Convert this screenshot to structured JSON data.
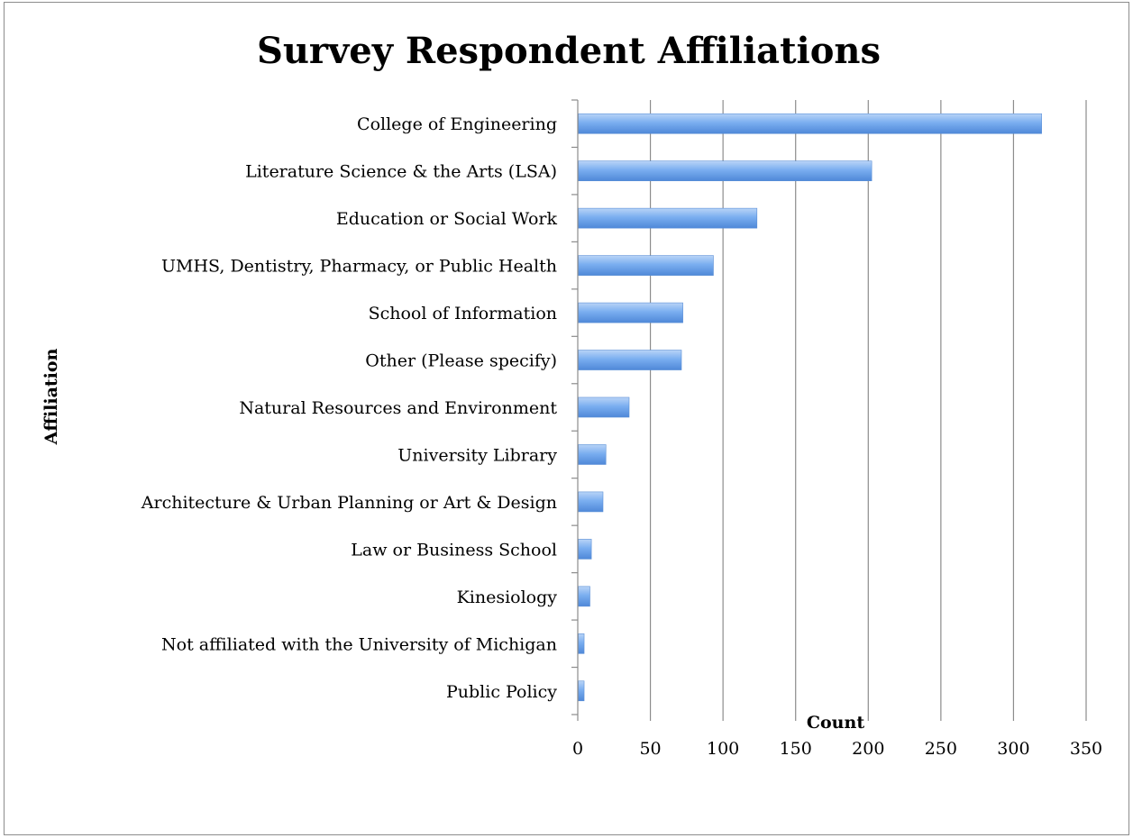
{
  "chart_data": {
    "type": "bar",
    "orientation": "horizontal",
    "title": "Survey Respondent Affiliations",
    "xlabel": "Count",
    "ylabel": "Affiliation",
    "xlim": [
      0,
      350
    ],
    "xticks": [
      "0",
      "50",
      "100",
      "150",
      "200",
      "250",
      "300",
      "350"
    ],
    "grid": true,
    "legend": "none",
    "bar_color": "#6fa3e6",
    "categories": [
      "College of Engineering",
      "Literature Science & the Arts (LSA)",
      "Education or Social Work",
      "UMHS, Dentistry, Pharmacy, or Public Health",
      "School of Information",
      "Other (Please specify)",
      "Natural Resources and Environment",
      "University Library",
      "Architecture & Urban Planning or Art & Design",
      "Law or Business School",
      "Kinesiology",
      "Not affiliated with the University of Michigan",
      "Public Policy"
    ],
    "values": [
      319,
      202,
      123,
      93,
      72,
      71,
      35,
      19,
      17,
      9,
      8,
      4,
      4
    ]
  }
}
